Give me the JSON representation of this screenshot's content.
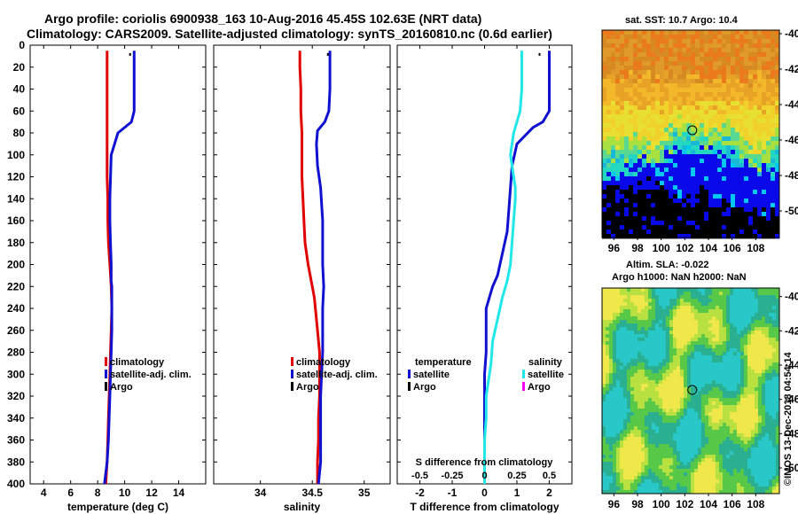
{
  "header": {
    "line1": "Argo profile: coriolis 6900938_163 10-Aug-2016 45.45S 102.63E (NRT data)",
    "line2": "Climatology: CARS2009. Satellite-adjusted climatology: synTS_20160810.nc (0.6d earlier)"
  },
  "colors": {
    "climatology": "#e00000",
    "satellite": "#1010d0",
    "argo": "#000000",
    "salinity_satellite": "#20e8e8",
    "salinity_argo": "#ff00ff"
  },
  "depth_axis": {
    "ylim": [
      0,
      400
    ],
    "ticks": [
      0,
      20,
      40,
      60,
      80,
      100,
      120,
      140,
      160,
      180,
      200,
      220,
      240,
      260,
      280,
      300,
      320,
      340,
      360,
      380,
      400
    ]
  },
  "chart_data": [
    {
      "type": "line",
      "name": "temperature",
      "xlabel": "temperature (deg C)",
      "xlim": [
        3,
        16
      ],
      "xticks": [
        4,
        6,
        8,
        10,
        12,
        14
      ],
      "ylim": [
        400,
        0
      ],
      "series": [
        {
          "name": "climatology",
          "x": [
            8.7,
            8.7,
            8.7,
            8.7,
            8.7,
            8.7,
            8.7,
            8.75,
            8.75,
            8.8,
            8.9,
            9.0,
            9.05,
            9.0,
            8.95,
            8.9,
            8.85,
            8.8,
            8.75,
            8.7,
            8.6
          ],
          "y": [
            5,
            20,
            40,
            60,
            80,
            100,
            120,
            140,
            160,
            180,
            200,
            220,
            240,
            260,
            280,
            300,
            320,
            340,
            360,
            380,
            400
          ]
        },
        {
          "name": "satellite-adj. clim.",
          "x": [
            10.7,
            10.7,
            10.7,
            10.7,
            10.6,
            10.5,
            9.5,
            9.0,
            8.9,
            8.9,
            8.95,
            9.0,
            9.0,
            9.05,
            9.05,
            9.05,
            9.0,
            8.95,
            8.9,
            8.85,
            8.8,
            8.7,
            8.5
          ],
          "y": [
            5,
            20,
            40,
            60,
            65,
            70,
            80,
            100,
            140,
            160,
            180,
            200,
            215,
            220,
            240,
            260,
            280,
            300,
            320,
            340,
            360,
            380,
            400
          ]
        },
        {
          "name": "Argo",
          "x": [
            10.4
          ],
          "y": [
            8
          ]
        }
      ],
      "legend": [
        "climatology",
        "satellite-adj. clim.",
        "Argo"
      ]
    },
    {
      "type": "line",
      "name": "salinity",
      "xlabel": "salinity",
      "xlim": [
        33.55,
        35.25
      ],
      "xticks": [
        34,
        34.5,
        35
      ],
      "xtick_labels": [
        "34",
        "34.5",
        "35"
      ],
      "ylim": [
        400,
        0
      ],
      "series": [
        {
          "name": "climatology",
          "x": [
            34.38,
            34.38,
            34.39,
            34.39,
            34.4,
            34.4,
            34.4,
            34.41,
            34.42,
            34.43,
            34.46,
            34.5,
            34.52,
            34.53,
            34.55,
            34.57,
            34.57,
            34.57,
            34.56,
            34.56,
            34.55,
            34.55,
            34.55
          ],
          "y": [
            5,
            20,
            40,
            60,
            80,
            100,
            120,
            140,
            160,
            180,
            200,
            220,
            230,
            240,
            260,
            280,
            300,
            320,
            340,
            360,
            380,
            390,
            400
          ]
        },
        {
          "name": "satellite-adj. clim.",
          "x": [
            34.67,
            34.67,
            34.67,
            34.66,
            34.62,
            34.55,
            34.54,
            34.55,
            34.58,
            34.6,
            34.6,
            34.6,
            34.61,
            34.6,
            34.6,
            34.6,
            34.59,
            34.58,
            34.58,
            34.58,
            34.58,
            34.57,
            34.56
          ],
          "y": [
            5,
            20,
            40,
            60,
            70,
            78,
            90,
            110,
            130,
            160,
            180,
            200,
            220,
            240,
            260,
            280,
            300,
            320,
            340,
            360,
            380,
            390,
            400
          ]
        },
        {
          "name": "Argo",
          "x": [
            34.65
          ],
          "y": [
            8
          ]
        }
      ],
      "legend": [
        "climatology",
        "satellite-adj. clim.",
        "Argo"
      ]
    },
    {
      "type": "line",
      "name": "difference from climatology",
      "xlabel": "T difference from climatology",
      "xlim": [
        -2.7,
        2.7
      ],
      "xticks": [
        -2,
        -1,
        0,
        1,
        2
      ],
      "top_label": "S difference from climatology",
      "top_ticks": [
        -0.5,
        -0.25,
        0,
        0.25,
        0.5
      ],
      "top_tick_labels": [
        "-0.5",
        "-0.25",
        "0",
        "0.25",
        "0.5"
      ],
      "ylim": [
        400,
        0
      ],
      "series": [
        {
          "name": "temperature satellite",
          "x": [
            2.0,
            2.0,
            2.0,
            2.0,
            1.9,
            1.8,
            1.5,
            1.0,
            0.85,
            0.8,
            0.75,
            0.7,
            0.55,
            0.4,
            0.25,
            0.05,
            0.05,
            0.05,
            0.0,
            0.0,
            0.0,
            0.0,
            0.0
          ],
          "y": [
            5,
            20,
            40,
            60,
            65,
            70,
            75,
            90,
            110,
            130,
            150,
            170,
            190,
            210,
            220,
            240,
            260,
            280,
            300,
            320,
            340,
            360,
            400
          ]
        },
        {
          "name": "salinity satellite",
          "x": [
            1.15,
            1.15,
            1.15,
            1.1,
            0.9,
            0.8,
            0.9,
            0.95,
            0.95,
            0.9,
            0.85,
            0.8,
            0.7,
            0.55,
            0.4,
            0.25,
            0.2,
            0.05,
            0.05,
            0.0,
            0.0,
            0.0
          ],
          "y": [
            5,
            20,
            40,
            60,
            80,
            100,
            120,
            130,
            140,
            160,
            180,
            200,
            215,
            230,
            250,
            270,
            290,
            320,
            340,
            360,
            380,
            400
          ]
        },
        {
          "name": "Argo",
          "x": [
            1.7
          ],
          "y": [
            8
          ]
        }
      ],
      "legend_titles": [
        "temperature",
        "salinity"
      ],
      "legend_left": [
        "satellite",
        "Argo"
      ],
      "legend_right": [
        "satellite",
        "Argo"
      ]
    },
    {
      "type": "heatmap",
      "name": "SST map",
      "title": "sat. SST: 10.7 Argo: 10.4",
      "xlim": [
        95,
        110
      ],
      "ylim": [
        -51.5,
        -39.8
      ],
      "xticks": [
        96,
        98,
        100,
        102,
        104,
        106,
        108
      ],
      "yticks": [
        -40,
        -42,
        -44,
        -46,
        -48,
        -50
      ],
      "argo_position": {
        "lon": 102.63,
        "lat": -45.45
      }
    },
    {
      "type": "heatmap",
      "name": "SLA map",
      "title_line1": "Altim. SLA: -0.022",
      "title_line2": "Argo h1000: NaN h2000: NaN",
      "xlim": [
        95,
        110
      ],
      "ylim": [
        -51.5,
        -39.5
      ],
      "xticks": [
        96,
        98,
        100,
        102,
        104,
        106,
        108
      ],
      "yticks": [
        -40,
        -42,
        -44,
        -46,
        -48,
        -50
      ],
      "argo_position": {
        "lon": 102.63,
        "lat": -45.45
      }
    }
  ],
  "watermark": "©IMOS 13-Dec-2018 04:54:14"
}
